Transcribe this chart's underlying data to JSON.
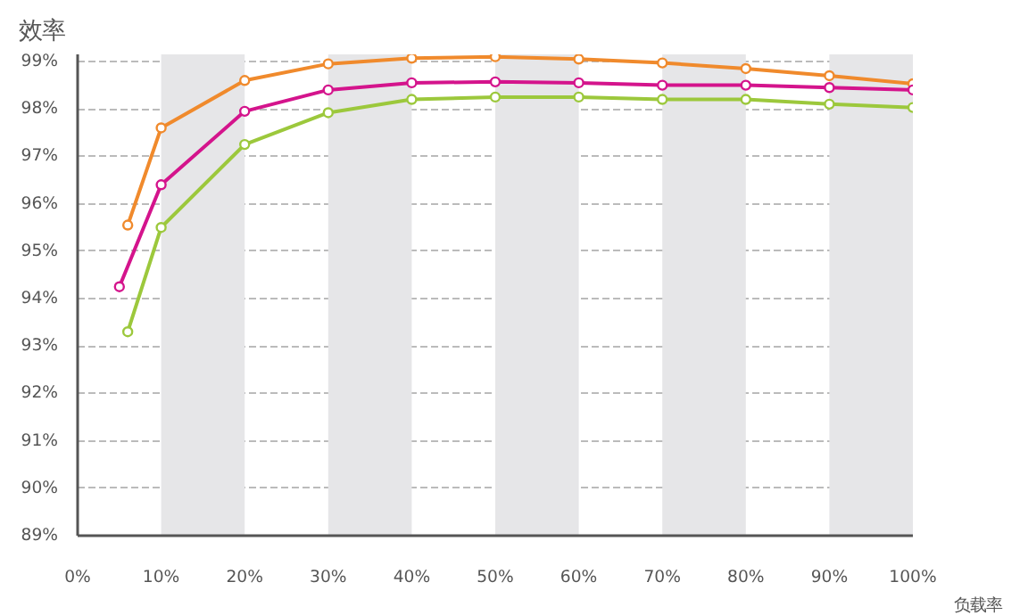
{
  "chart_data": {
    "type": "line",
    "title": "效率",
    "xlabel": "负载率",
    "xlim": [
      0,
      100
    ],
    "ylim": [
      89,
      99.15
    ],
    "xticks": [
      {
        "value": 0,
        "label": "0%"
      },
      {
        "value": 10,
        "label": "10%"
      },
      {
        "value": 20,
        "label": "20%"
      },
      {
        "value": 30,
        "label": "30%"
      },
      {
        "value": 40,
        "label": "40%"
      },
      {
        "value": 50,
        "label": "50%"
      },
      {
        "value": 60,
        "label": "60%"
      },
      {
        "value": 70,
        "label": "70%"
      },
      {
        "value": 80,
        "label": "80%"
      },
      {
        "value": 90,
        "label": "90%"
      },
      {
        "value": 100,
        "label": "100%"
      }
    ],
    "yticks": [
      {
        "value": 89,
        "label": "89%"
      },
      {
        "value": 90,
        "label": "90%"
      },
      {
        "value": 91,
        "label": "91%"
      },
      {
        "value": 92,
        "label": "92%"
      },
      {
        "value": 93,
        "label": "93%"
      },
      {
        "value": 94,
        "label": "94%"
      },
      {
        "value": 95,
        "label": "95%"
      },
      {
        "value": 96,
        "label": "96%"
      },
      {
        "value": 97,
        "label": "97%"
      },
      {
        "value": 98,
        "label": "98%"
      },
      {
        "value": 99,
        "label": "99%"
      }
    ],
    "grid": "y",
    "marker": "circle",
    "line_style": "solid",
    "bands": [
      {
        "axis": "x",
        "from": 10,
        "to": 20,
        "color": "#e6e6e8"
      },
      {
        "axis": "x",
        "from": 30,
        "to": 40,
        "color": "#e6e6e8"
      },
      {
        "axis": "x",
        "from": 50,
        "to": 60,
        "color": "#e6e6e8"
      },
      {
        "axis": "x",
        "from": 70,
        "to": 80,
        "color": "#e6e6e8"
      },
      {
        "axis": "x",
        "from": 90,
        "to": 100,
        "color": "#e6e6e8"
      }
    ],
    "series": [
      {
        "color": "#f08a2c",
        "x": [
          6,
          10,
          20,
          30,
          40,
          50,
          60,
          70,
          80,
          90,
          100
        ],
        "values": [
          95.55,
          97.6,
          98.6,
          98.95,
          99.07,
          99.1,
          99.05,
          98.97,
          98.85,
          98.7,
          98.53
        ]
      },
      {
        "color": "#d4148c",
        "x": [
          5,
          10,
          20,
          30,
          40,
          50,
          60,
          70,
          80,
          90,
          100
        ],
        "values": [
          94.25,
          96.4,
          97.95,
          98.4,
          98.55,
          98.57,
          98.55,
          98.5,
          98.5,
          98.45,
          98.4
        ]
      },
      {
        "color": "#9cc83c",
        "x": [
          6,
          10,
          20,
          30,
          40,
          50,
          60,
          70,
          80,
          90,
          100
        ],
        "values": [
          93.3,
          95.5,
          97.25,
          97.92,
          98.2,
          98.25,
          98.25,
          98.2,
          98.2,
          98.1,
          98.03
        ]
      }
    ]
  }
}
